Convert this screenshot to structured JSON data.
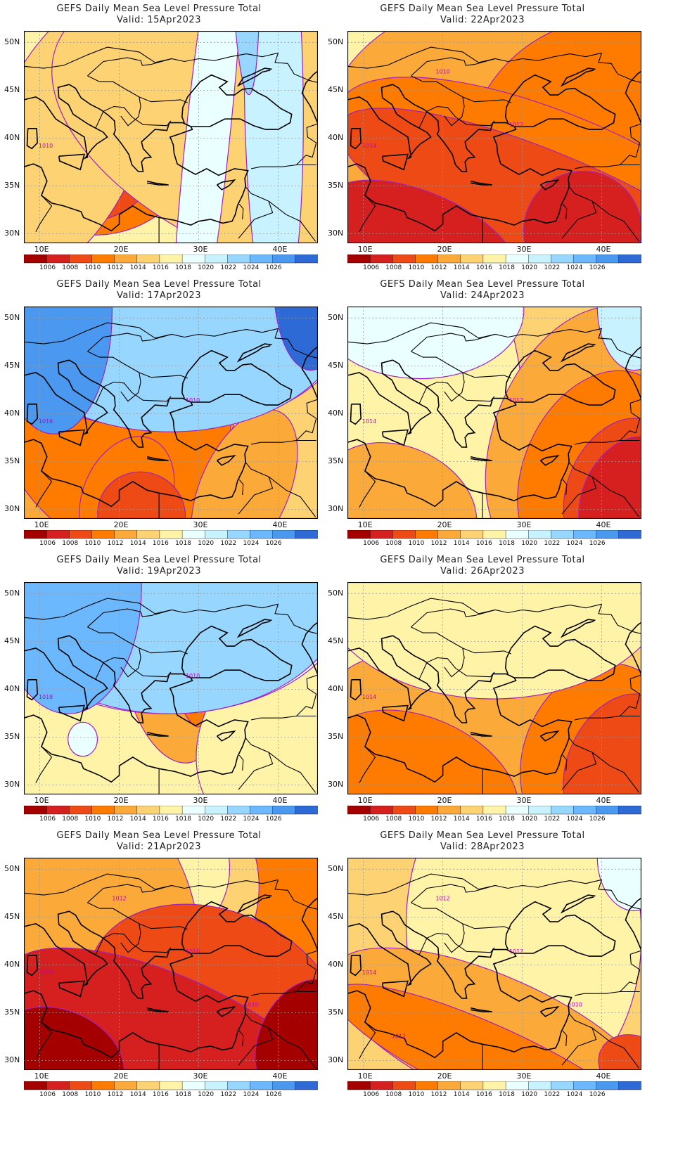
{
  "figure": {
    "title_line1": "GEFS Daily Mean Sea Level Pressure Total",
    "valid_prefix": "Valid:"
  },
  "axes": {
    "lat_labels": [
      "50N",
      "45N",
      "40N",
      "35N",
      "30N"
    ],
    "lat_values": [
      50,
      45,
      40,
      35,
      30
    ],
    "lon_labels": [
      "10E",
      "20E",
      "30E",
      "40E"
    ],
    "lon_values": [
      10,
      20,
      30,
      40
    ],
    "lat_range": [
      29,
      51.2
    ],
    "lon_range": [
      8,
      45
    ]
  },
  "colorbar": {
    "ticks": [
      "1006",
      "1008",
      "1010",
      "1012",
      "1014",
      "1016",
      "1018",
      "1020",
      "1022",
      "1024",
      "1026"
    ],
    "colors": [
      "#a50000",
      "#d61f1f",
      "#ee4a16",
      "#ff7b00",
      "#fbaa3a",
      "#fdd273",
      "#fff3a8",
      "#eaffff",
      "#c8f2ff",
      "#96d6ff",
      "#6cb8ff",
      "#4a98ef",
      "#2d6ad6"
    ]
  },
  "panels": [
    {
      "date": "15Apr2023",
      "bg": "#fff3a8",
      "contour_labels": [
        "1010"
      ],
      "blobs": [
        [
          "#ff7b00",
          -10,
          60,
          46,
          0,
          -90
        ],
        [
          "#ee4a16",
          -8,
          48,
          40,
          0,
          -95
        ],
        [
          "#d61f1f",
          -6,
          38,
          34,
          2,
          -110
        ],
        [
          "#a50000",
          -4,
          30,
          28,
          4,
          -140
        ],
        [
          "#ff7b00",
          40,
          90,
          40,
          0,
          -80
        ],
        [
          "#fdd273",
          -10,
          40,
          70,
          0,
          150
        ],
        [
          "#fdd273",
          5,
          170,
          60,
          0,
          150
        ],
        [
          "#eaffff",
          55,
          70,
          130,
          0,
          40
        ],
        [
          "#c8f2ff",
          75,
          95,
          110,
          10,
          -5
        ],
        [
          "#96d6ff",
          80,
          70,
          80,
          50,
          -10
        ],
        [
          "#6cb8ff",
          82,
          60,
          40,
          60,
          -4
        ]
      ]
    },
    {
      "date": "22Apr2023",
      "bg": "#fdd273",
      "contour_labels": [
        "1014",
        "1012",
        "1010"
      ],
      "blobs": [
        [
          "#fff3a8",
          -10,
          70,
          110,
          5,
          -30
        ],
        [
          "#fbaa3a",
          -10,
          140,
          80,
          -8,
          110
        ],
        [
          "#ff7b00",
          40,
          140,
          70,
          -7,
          120
        ],
        [
          "#ff7b00",
          -10,
          160,
          40,
          -16,
          160
        ],
        [
          "#ee4a16",
          -10,
          160,
          30,
          -21,
          162
        ],
        [
          "#d61f1f",
          -10,
          60,
          22,
          -24,
          154
        ],
        [
          "#d61f1f",
          60,
          100,
          28,
          -22,
          160
        ]
      ]
    },
    {
      "date": "17Apr2023",
      "bg": "#fdd273",
      "contour_labels": [
        "1016",
        "1010"
      ],
      "blobs": [
        [
          "#fbaa3a",
          -10,
          70,
          90,
          -2,
          135
        ],
        [
          "#ff7b00",
          -10,
          70,
          70,
          3,
          -80
        ],
        [
          "#ee4a16",
          5,
          20,
          20,
          6,
          -70
        ],
        [
          "#ff7b00",
          20,
          50,
          30,
          -20,
          150
        ],
        [
          "#ee4a16",
          25,
          55,
          20,
          -24,
          162
        ],
        [
          "#fbaa3a",
          60,
          90,
          40,
          -18,
          160
        ],
        [
          "#fff3a8",
          -10,
          30,
          35,
          15,
          -20
        ],
        [
          "#eaffff",
          -10,
          110,
          48,
          20,
          -10
        ],
        [
          "#c8f2ff",
          -10,
          110,
          52,
          22,
          -5
        ],
        [
          "#96d6ff",
          -10,
          110,
          55,
          23,
          -2
        ],
        [
          "#4a98ef",
          -10,
          30,
          58,
          24,
          -1
        ],
        [
          "#2d6ad6",
          85,
          110,
          40,
          30,
          -1
        ]
      ]
    },
    {
      "date": "24Apr2023",
      "bg": "#fdd273",
      "contour_labels": [
        "1014",
        "1012"
      ],
      "blobs": [
        [
          "#fff3a8",
          -10,
          60,
          95,
          0,
          -20
        ],
        [
          "#fbaa3a",
          50,
          110,
          65,
          -6,
          150
        ],
        [
          "#ff7b00",
          60,
          110,
          50,
          -14,
          160
        ],
        [
          "#ee4a16",
          75,
          110,
          35,
          -18,
          162
        ],
        [
          "#d61f1f",
          80,
          110,
          30,
          -20,
          162
        ],
        [
          "#fbaa3a",
          -10,
          45,
          28,
          -22,
          160
        ],
        [
          "#eaffff",
          -10,
          60,
          32,
          24,
          -2
        ],
        [
          "#c8f2ff",
          85,
          110,
          30,
          25,
          -1
        ]
      ]
    },
    {
      "date": "19Apr2023",
      "bg": "#fdd273",
      "contour_labels": [
        "1018",
        "1010"
      ],
      "blobs": [
        [
          "#fff3a8",
          -10,
          70,
          120,
          0,
          -10
        ],
        [
          "#fbaa3a",
          35,
          65,
          40,
          2,
          -90
        ],
        [
          "#ff7b00",
          50,
          60,
          25,
          3,
          -100
        ],
        [
          "#fff3a8",
          60,
          110,
          45,
          -12,
          160
        ],
        [
          "#eaffff",
          -10,
          110,
          52,
          20,
          -8
        ],
        [
          "#c8f2ff",
          -10,
          110,
          55,
          22,
          -4
        ],
        [
          "#96d6ff",
          -10,
          110,
          58,
          23,
          -2
        ],
        [
          "#6cb8ff",
          -10,
          40,
          60,
          24,
          -1
        ],
        [
          "#eaffff",
          15,
          25,
          8,
          -12,
          -5
        ]
      ]
    },
    {
      "date": "26Apr2023",
      "bg": "#fdd273",
      "contour_labels": [
        "1014"
      ],
      "blobs": [
        [
          "#fff3a8",
          -10,
          60,
          100,
          4,
          -30
        ],
        [
          "#fbaa3a",
          -10,
          110,
          40,
          -16,
          150
        ],
        [
          "#ff7b00",
          -10,
          60,
          30,
          -22,
          160
        ],
        [
          "#ff7b00",
          60,
          110,
          45,
          -16,
          150
        ],
        [
          "#ee4a16",
          75,
          110,
          35,
          -18,
          165
        ],
        [
          "#fff3a8",
          -10,
          110,
          55,
          25,
          -3
        ]
      ]
    },
    {
      "date": "21Apr2023",
      "bg": "#ff7b00",
      "contour_labels": [
        "1016",
        "1010",
        "1012",
        "1010"
      ],
      "blobs": [
        [
          "#fdd273",
          -10,
          80,
          60,
          18,
          -40
        ],
        [
          "#fff3a8",
          -10,
          70,
          45,
          22,
          -20
        ],
        [
          "#eaffff",
          5,
          30,
          15,
          25,
          -5
        ],
        [
          "#fbaa3a",
          -10,
          60,
          75,
          4,
          -40
        ],
        [
          "#ee4a16",
          20,
          110,
          45,
          -10,
          155
        ],
        [
          "#d61f1f",
          -10,
          110,
          30,
          -18,
          160
        ],
        [
          "#a50000",
          -10,
          35,
          22,
          -22,
          160
        ],
        [
          "#a50000",
          80,
          110,
          30,
          -18,
          162
        ]
      ]
    },
    {
      "date": "28Apr2023",
      "bg": "#fdd273",
      "contour_labels": [
        "1014",
        "1012",
        "1012",
        "1010",
        "1012"
      ],
      "blobs": [
        [
          "#fff3a8",
          20,
          100,
          80,
          8,
          -15
        ],
        [
          "#eaffff",
          85,
          110,
          25,
          25,
          -2
        ],
        [
          "#fbaa3a",
          -10,
          110,
          30,
          -18,
          160
        ],
        [
          "#ff7b00",
          -10,
          110,
          18,
          -24,
          165
        ],
        [
          "#ee4a16",
          85,
          110,
          14,
          -24,
          170
        ]
      ]
    }
  ]
}
